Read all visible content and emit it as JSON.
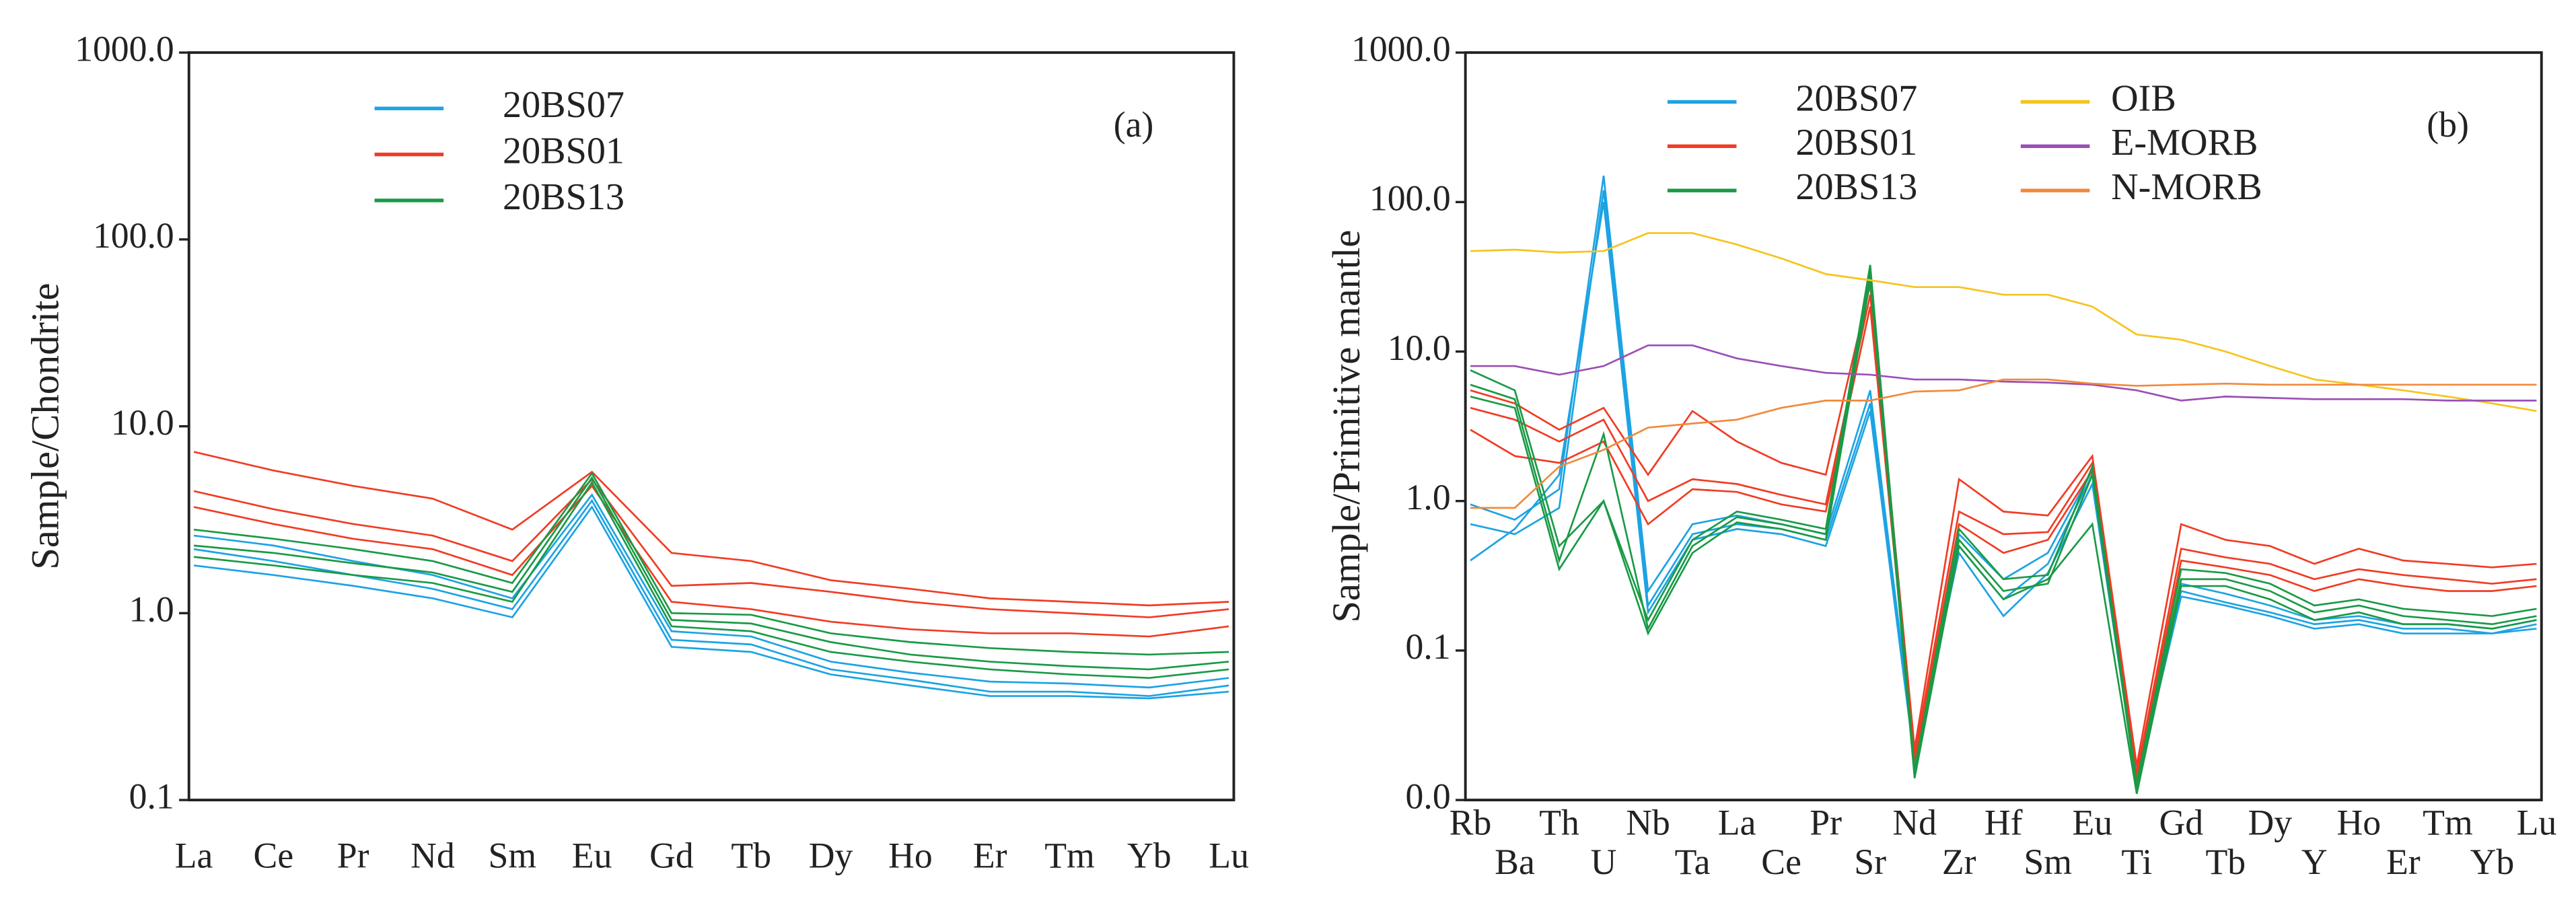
{
  "chart_data": [
    {
      "type": "line",
      "label": "(a)",
      "ylabel": "Sample/Chondrite",
      "log_scale": true,
      "categories": [
        "La",
        "Ce",
        "Pr",
        "Nd",
        "Sm",
        "Eu",
        "Gd",
        "Tb",
        "Dy",
        "Ho",
        "Er",
        "Tm",
        "Yb",
        "Lu"
      ],
      "ylim": [
        0.1,
        1000
      ],
      "yticks": [
        0.1,
        {
          "value": 1,
          "label": "1.0"
        },
        {
          "value": 10,
          "label": "10.0"
        },
        {
          "value": 100,
          "label": "100.0"
        },
        {
          "value": 1000,
          "label": "1000.0"
        }
      ],
      "series": [
        {
          "name": "20BS07",
          "color": "#1ca3e3",
          "values": [
            [
              2.6,
              2.3,
              1.9,
              1.6,
              1.2,
              4.3,
              0.8,
              0.75,
              0.55,
              0.48,
              0.43,
              0.42,
              0.4,
              0.45
            ],
            [
              2.2,
              1.9,
              1.6,
              1.35,
              1.05,
              4.0,
              0.72,
              0.68,
              0.5,
              0.44,
              0.38,
              0.38,
              0.36,
              0.41
            ],
            [
              1.8,
              1.6,
              1.4,
              1.2,
              0.95,
              3.7,
              0.66,
              0.62,
              0.47,
              0.41,
              0.36,
              0.36,
              0.35,
              0.38
            ]
          ]
        },
        {
          "name": "20BS01",
          "color": "#f03c24",
          "values": [
            [
              7.3,
              5.8,
              4.8,
              4.1,
              2.8,
              5.7,
              2.1,
              1.9,
              1.5,
              1.35,
              1.2,
              1.15,
              1.1,
              1.15
            ],
            [
              4.5,
              3.6,
              3.0,
              2.6,
              1.9,
              5.2,
              1.4,
              1.45,
              1.3,
              1.15,
              1.05,
              1.0,
              0.95,
              1.05
            ],
            [
              3.7,
              3.0,
              2.5,
              2.2,
              1.6,
              4.8,
              1.15,
              1.05,
              0.9,
              0.82,
              0.78,
              0.78,
              0.75,
              0.85
            ]
          ]
        },
        {
          "name": "20BS13",
          "color": "#1a9a46",
          "values": [
            [
              2.8,
              2.5,
              2.2,
              1.9,
              1.45,
              5.6,
              1.0,
              0.98,
              0.78,
              0.7,
              0.65,
              0.62,
              0.6,
              0.62
            ],
            [
              2.3,
              2.1,
              1.85,
              1.65,
              1.3,
              5.3,
              0.92,
              0.88,
              0.7,
              0.6,
              0.55,
              0.52,
              0.5,
              0.55
            ],
            [
              2.0,
              1.8,
              1.6,
              1.45,
              1.15,
              5.0,
              0.85,
              0.8,
              0.62,
              0.55,
              0.5,
              0.47,
              0.45,
              0.5
            ]
          ]
        }
      ]
    },
    {
      "type": "line",
      "label": "(b)",
      "ylabel": "Sample/Primitive mantle",
      "log_scale": true,
      "categories": [
        "Rb",
        "Ba",
        "Th",
        "U",
        "Nb",
        "Ta",
        "La",
        "Ce",
        "Pr",
        "Sr",
        "Nd",
        "Zr",
        "Hf",
        "Sm",
        "Eu",
        "Ti",
        "Gd",
        "Tb",
        "Dy",
        "Y",
        "Ho",
        "Er",
        "Tm",
        "Yb",
        "Lu"
      ],
      "ylim": [
        0.01,
        1000
      ],
      "yticks": [
        {
          "value": 0.01,
          "label": "0.0"
        },
        0.1,
        {
          "value": 1,
          "label": "1.0"
        },
        {
          "value": 10,
          "label": "10.0"
        },
        {
          "value": 100,
          "label": "100.0"
        },
        {
          "value": 1000,
          "label": "1000.0"
        }
      ],
      "series": [
        {
          "name": "20BS07",
          "color": "#1ca3e3",
          "values": [
            [
              0.95,
              0.75,
              1.2,
              150,
              0.25,
              0.7,
              0.8,
              0.7,
              0.6,
              5.5,
              0.02,
              0.6,
              0.3,
              0.45,
              1.6,
              0.016,
              0.28,
              0.24,
              0.2,
              0.16,
              0.17,
              0.15,
              0.15,
              0.14,
              0.16
            ],
            [
              0.7,
              0.6,
              0.9,
              120,
              0.2,
              0.6,
              0.7,
              0.65,
              0.55,
              4.5,
              0.02,
              0.5,
              0.22,
              0.38,
              1.5,
              0.015,
              0.25,
              0.21,
              0.18,
              0.15,
              0.16,
              0.14,
              0.14,
              0.13,
              0.15
            ],
            [
              0.4,
              0.65,
              1.5,
              100,
              0.18,
              0.55,
              0.65,
              0.6,
              0.5,
              4.0,
              0.018,
              0.45,
              0.17,
              0.33,
              1.3,
              0.013,
              0.23,
              0.2,
              0.17,
              0.14,
              0.15,
              0.13,
              0.13,
              0.13,
              0.14
            ]
          ]
        },
        {
          "name": "20BS01",
          "color": "#f03c24",
          "values": [
            [
              5.5,
              4.5,
              3.0,
              4.2,
              1.5,
              4.0,
              2.5,
              1.8,
              1.5,
              28,
              0.022,
              1.4,
              0.85,
              0.8,
              2.0,
              0.017,
              0.7,
              0.55,
              0.5,
              0.38,
              0.48,
              0.4,
              0.38,
              0.36,
              0.38
            ],
            [
              4.2,
              3.5,
              2.5,
              3.5,
              1.0,
              1.4,
              1.3,
              1.1,
              0.95,
              24,
              0.02,
              0.85,
              0.6,
              0.62,
              1.8,
              0.015,
              0.48,
              0.42,
              0.38,
              0.3,
              0.35,
              0.32,
              0.3,
              0.28,
              0.3
            ],
            [
              3.0,
              2.0,
              1.8,
              2.5,
              0.7,
              1.2,
              1.15,
              0.95,
              0.85,
              20,
              0.018,
              0.7,
              0.45,
              0.55,
              1.6,
              0.014,
              0.4,
              0.36,
              0.32,
              0.25,
              0.3,
              0.27,
              0.25,
              0.25,
              0.27
            ]
          ]
        },
        {
          "name": "20BS13",
          "color": "#1a9a46",
          "values": [
            [
              7.5,
              5.5,
              0.5,
              1.0,
              0.16,
              0.55,
              0.85,
              0.75,
              0.65,
              38,
              0.016,
              0.65,
              0.3,
              0.32,
              1.7,
              0.013,
              0.35,
              0.33,
              0.28,
              0.2,
              0.22,
              0.19,
              0.18,
              0.17,
              0.19
            ],
            [
              6.0,
              4.8,
              0.4,
              2.8,
              0.14,
              0.5,
              0.78,
              0.7,
              0.6,
              34,
              0.015,
              0.55,
              0.25,
              0.28,
              1.5,
              0.012,
              0.3,
              0.3,
              0.25,
              0.18,
              0.2,
              0.17,
              0.16,
              0.15,
              0.17
            ],
            [
              5.0,
              4.2,
              0.35,
              1.0,
              0.13,
              0.45,
              0.72,
              0.65,
              0.55,
              30,
              0.014,
              0.5,
              0.22,
              0.3,
              0.7,
              0.011,
              0.27,
              0.27,
              0.22,
              0.16,
              0.18,
              0.15,
              0.15,
              0.14,
              0.16
            ]
          ]
        },
        {
          "name": "OIB",
          "color": "#f7c31c",
          "values": [
            [
              47,
              48,
              46,
              47,
              62,
              62,
              52,
              42,
              33,
              30,
              27,
              27,
              24,
              24,
              20,
              13,
              12,
              10,
              8,
              6.5,
              6,
              5.5,
              5,
              4.5,
              4
            ]
          ]
        },
        {
          "name": "E-MORB",
          "color": "#9b4fb5",
          "values": [
            [
              8,
              8,
              7,
              8,
              11,
              11,
              9,
              8,
              7.2,
              7,
              6.5,
              6.5,
              6.3,
              6.2,
              6,
              5.5,
              4.7,
              5,
              4.9,
              4.8,
              4.8,
              4.8,
              4.7,
              4.7,
              4.7
            ]
          ]
        },
        {
          "name": "N-MORB",
          "color": "#f08a3c",
          "values": [
            [
              0.9,
              0.9,
              1.7,
              2.2,
              3.1,
              3.3,
              3.5,
              4.2,
              4.7,
              4.7,
              5.4,
              5.5,
              6.5,
              6.5,
              6.1,
              5.9,
              6.0,
              6.1,
              6.0,
              6.0,
              6.0,
              6.0,
              6.0,
              6.0,
              6.0
            ]
          ]
        }
      ]
    }
  ]
}
